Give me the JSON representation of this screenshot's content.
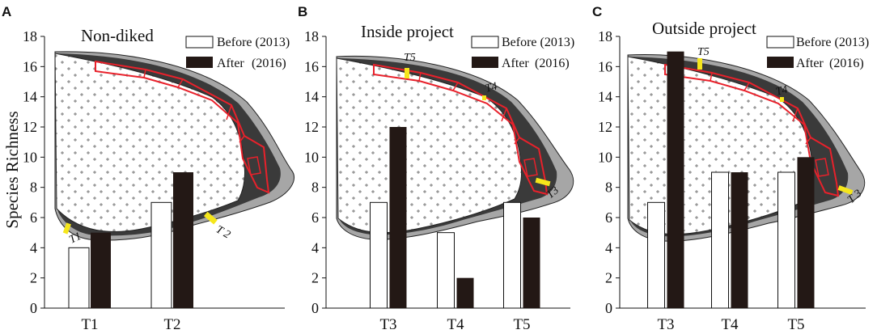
{
  "figure": {
    "ylabel": "Species Richness",
    "legend": {
      "before": "Before (2013)",
      "after_word": "After",
      "after_year": "(2016)"
    },
    "colors": {
      "before": "#ffffff",
      "after": "#231815",
      "marsh_dark": "#3a3a3a",
      "marsh_light": "#a6a6a6",
      "project_outline": "#e8212b",
      "transect": "#f5e61b"
    }
  },
  "chart_data": [
    {
      "panel": "A",
      "type": "bar",
      "title": "Non-diked",
      "ylabel": "Species Richness",
      "ylim": [
        0,
        18
      ],
      "yticks": [
        0,
        2,
        4,
        6,
        8,
        10,
        12,
        14,
        16,
        18
      ],
      "categories": [
        "T1",
        "T2"
      ],
      "series": [
        {
          "name": "Before (2013)",
          "values": [
            4,
            7
          ]
        },
        {
          "name": "After (2016)",
          "values": [
            5,
            9
          ]
        }
      ],
      "map_labels": [
        "T1",
        "T 2"
      ]
    },
    {
      "panel": "B",
      "type": "bar",
      "title": "Inside project",
      "ylim": [
        0,
        18
      ],
      "yticks": [
        0,
        2,
        4,
        6,
        8,
        10,
        12,
        14,
        16,
        18
      ],
      "categories": [
        "T3",
        "T4",
        "T5"
      ],
      "series": [
        {
          "name": "Before (2013)",
          "values": [
            7,
            5,
            7
          ]
        },
        {
          "name": "After (2016)",
          "values": [
            12,
            2,
            6
          ]
        }
      ],
      "map_labels": [
        "T5",
        "T4",
        "T3"
      ]
    },
    {
      "panel": "C",
      "type": "bar",
      "title": "Outside project",
      "ylim": [
        0,
        18
      ],
      "yticks": [
        0,
        2,
        4,
        6,
        8,
        10,
        12,
        14,
        16,
        18
      ],
      "categories": [
        "T3",
        "T4",
        "T5"
      ],
      "series": [
        {
          "name": "Before (2013)",
          "values": [
            7,
            9,
            9
          ]
        },
        {
          "name": "After (2016)",
          "values": [
            17,
            9,
            10
          ]
        }
      ],
      "map_labels": [
        "T5",
        "T4",
        "T 3"
      ]
    }
  ]
}
